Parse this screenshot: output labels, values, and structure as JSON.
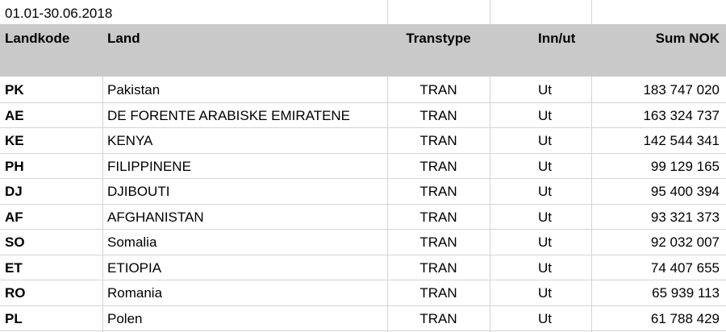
{
  "sheet": {
    "period": "01.01-30.06.2018",
    "columns": [
      "Landkode",
      "Land",
      "Transtype",
      "Inn/ut",
      "Sum NOK"
    ],
    "rows": [
      [
        "PK",
        "Pakistan",
        "TRAN",
        "Ut",
        "183 747 020"
      ],
      [
        "AE",
        "DE FORENTE ARABISKE EMIRATENE",
        "TRAN",
        "Ut",
        "163 324 737"
      ],
      [
        "KE",
        "KENYA",
        "TRAN",
        "Ut",
        "142 544 341"
      ],
      [
        "PH",
        "FILIPPINENE",
        "TRAN",
        "Ut",
        "99 129 165"
      ],
      [
        "DJ",
        "DJIBOUTI",
        "TRAN",
        "Ut",
        "95 400 394"
      ],
      [
        "AF",
        "AFGHANISTAN",
        "TRAN",
        "Ut",
        "93 321 373"
      ],
      [
        "SO",
        "Somalia",
        "TRAN",
        "Ut",
        "92 032 007"
      ],
      [
        "ET",
        "ETIOPIA",
        "TRAN",
        "Ut",
        "74 407 655"
      ],
      [
        "RO",
        "Romania",
        "TRAN",
        "Ut",
        "65 939 113"
      ],
      [
        "PL",
        "Polen",
        "TRAN",
        "Ut",
        "61 788 429"
      ]
    ]
  }
}
